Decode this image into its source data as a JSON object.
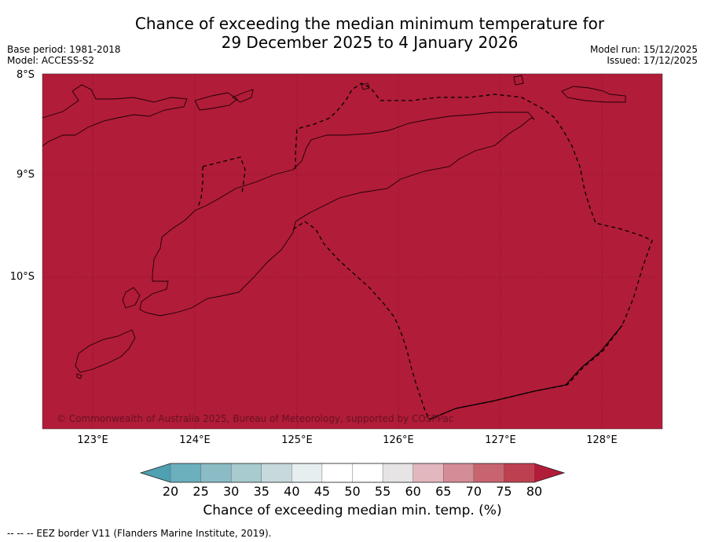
{
  "title_line1": "Chance of exceeding the median minimum temperature for",
  "title_line2": "29 December 2025 to 4 January 2026",
  "meta_left": {
    "base_period": "Base period: 1981-2018",
    "model": "Model: ACCESS-S2"
  },
  "meta_right": {
    "model_run": "Model run: 15/12/2025",
    "issued": "Issued: 17/12/2025"
  },
  "map": {
    "fill_color": "#b11c38",
    "lat_labels": [
      "8°S",
      "9°S",
      "10°S"
    ],
    "lon_labels": [
      "123°E",
      "124°E",
      "125°E",
      "126°E",
      "127°E",
      "128°E"
    ],
    "copyright": "© Commonwealth of Australia 2025, Bureau of Meteorology, supported by COSPPac"
  },
  "colorbar": {
    "ticks": [
      "20",
      "25",
      "30",
      "35",
      "40",
      "45",
      "50",
      "55",
      "60",
      "65",
      "70",
      "75",
      "80"
    ],
    "colors": [
      "#4fa0b0",
      "#6cafbd",
      "#8bbcc6",
      "#a7cbcf",
      "#c7d9dc",
      "#e6eef0",
      "#ffffff",
      "#ffffff",
      "#e6e4e4",
      "#e2b7be",
      "#d48c96",
      "#c8646f",
      "#bd4050",
      "#b11c38"
    ],
    "label": "Chance of exceeding median min. temp. (%)"
  },
  "footer": "--  --  -- EEZ border V11 (Flanders Marine Institute, 2019)."
}
